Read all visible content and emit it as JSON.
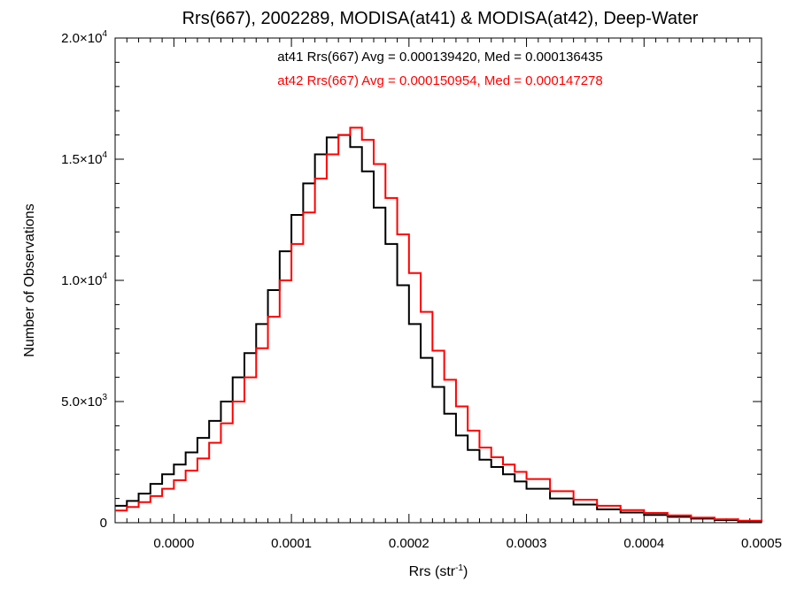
{
  "chart_data": {
    "type": "line",
    "title": "Rrs(667), 2002289, MODISA(at41) & MODISA(at42), Deep-Water",
    "xlabel": "Rrs (str",
    "xlabel_sup": "-1",
    "xlabel_close": ")",
    "ylabel": "Number of Observations",
    "xlim": [
      -5e-05,
      0.0005
    ],
    "ylim": [
      0,
      20000
    ],
    "x_ticks": [
      {
        "value": 0.0,
        "label": "0.0000"
      },
      {
        "value": 0.0001,
        "label": "0.0001"
      },
      {
        "value": 0.0002,
        "label": "0.0002"
      },
      {
        "value": 0.0003,
        "label": "0.0003"
      },
      {
        "value": 0.0004,
        "label": "0.0004"
      },
      {
        "value": 0.0005,
        "label": "0.0005"
      }
    ],
    "y_ticks": [
      {
        "value": 0,
        "mantissa": "0",
        "times": "",
        "base": "",
        "exp": ""
      },
      {
        "value": 5000,
        "mantissa": "5.0",
        "times": "×",
        "base": "10",
        "exp": "3"
      },
      {
        "value": 10000,
        "mantissa": "1.0",
        "times": "×",
        "base": "10",
        "exp": "4"
      },
      {
        "value": 15000,
        "mantissa": "1.5",
        "times": "×",
        "base": "10",
        "exp": "4"
      },
      {
        "value": 20000,
        "mantissa": "2.0",
        "times": "×",
        "base": "10",
        "exp": "4"
      }
    ],
    "annotations": [
      {
        "text": "at41 Rrs(667) Avg = 0.000139420, Med = 0.000136435",
        "color": "#000000"
      },
      {
        "text": "at42 Rrs(667) Avg = 0.000150954, Med = 0.000147278",
        "color": "#ff0000"
      }
    ],
    "series": [
      {
        "color": "#000000",
        "x": [
          -5e-05,
          -4e-05,
          -3e-05,
          -2e-05,
          -1e-05,
          0.0,
          1e-05,
          2e-05,
          3e-05,
          4e-05,
          5e-05,
          6e-05,
          7e-05,
          8e-05,
          9e-05,
          0.0001,
          0.00011,
          0.00012,
          0.00013,
          0.00014,
          0.00015,
          0.00016,
          0.00017,
          0.00018,
          0.00019,
          0.0002,
          0.00021,
          0.00022,
          0.00023,
          0.00024,
          0.00025,
          0.00026,
          0.00027,
          0.00028,
          0.00029,
          0.0003,
          0.00032,
          0.00034,
          0.00036,
          0.00038,
          0.0004,
          0.00042,
          0.00044,
          0.00046,
          0.00048,
          0.0005
        ],
        "y": [
          700,
          900,
          1200,
          1600,
          2000,
          2400,
          2900,
          3500,
          4200,
          5000,
          6000,
          7000,
          8200,
          9600,
          11200,
          12700,
          14000,
          15200,
          15900,
          16000,
          15500,
          14500,
          13000,
          11500,
          9800,
          8200,
          6800,
          5600,
          4500,
          3600,
          3000,
          2600,
          2300,
          2000,
          1700,
          1400,
          1000,
          750,
          550,
          420,
          320,
          240,
          170,
          110,
          60,
          30
        ]
      },
      {
        "color": "#ff0000",
        "x": [
          -5e-05,
          -4e-05,
          -3e-05,
          -2e-05,
          -1e-05,
          0.0,
          1e-05,
          2e-05,
          3e-05,
          4e-05,
          5e-05,
          6e-05,
          7e-05,
          8e-05,
          9e-05,
          0.0001,
          0.00011,
          0.00012,
          0.00013,
          0.00014,
          0.00015,
          0.00016,
          0.00017,
          0.00018,
          0.00019,
          0.0002,
          0.00021,
          0.00022,
          0.00023,
          0.00024,
          0.00025,
          0.00026,
          0.00027,
          0.00028,
          0.00029,
          0.0003,
          0.00032,
          0.00034,
          0.00036,
          0.00038,
          0.0004,
          0.00042,
          0.00044,
          0.00046,
          0.00048,
          0.0005
        ],
        "y": [
          500,
          650,
          850,
          1100,
          1400,
          1750,
          2150,
          2650,
          3300,
          4100,
          5000,
          6000,
          7200,
          8500,
          10000,
          11500,
          12800,
          14200,
          15200,
          16000,
          16300,
          15800,
          14800,
          13400,
          11900,
          10300,
          8700,
          7100,
          5900,
          4800,
          3800,
          3100,
          2700,
          2400,
          2100,
          1800,
          1300,
          950,
          700,
          520,
          400,
          300,
          210,
          140,
          80,
          40
        ]
      }
    ]
  }
}
